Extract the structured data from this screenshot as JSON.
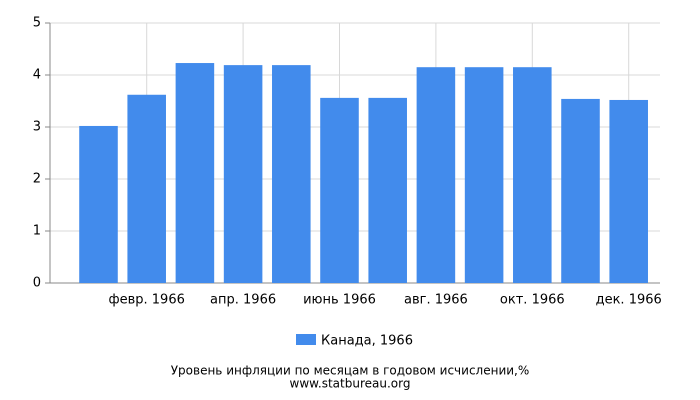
{
  "chart_data": {
    "type": "bar",
    "categories": [
      null,
      "февр. 1966",
      null,
      "апр. 1966",
      null,
      "июнь 1966",
      null,
      "авг. 1966",
      null,
      "окт. 1966",
      null,
      "дек. 1966"
    ],
    "series": [
      {
        "name": "Канада, 1966",
        "color": "#428bec",
        "values": [
          3.02,
          3.62,
          4.23,
          4.19,
          4.19,
          3.56,
          3.56,
          4.15,
          4.15,
          4.15,
          3.54,
          3.52
        ]
      }
    ],
    "ylim": [
      0,
      5
    ],
    "yticks": [
      0,
      1,
      2,
      3,
      4,
      5
    ],
    "grid": true,
    "xlabel": "Уровень инфляции по месяцам в годовом исчислении,%",
    "source": "www.statbureau.org"
  }
}
